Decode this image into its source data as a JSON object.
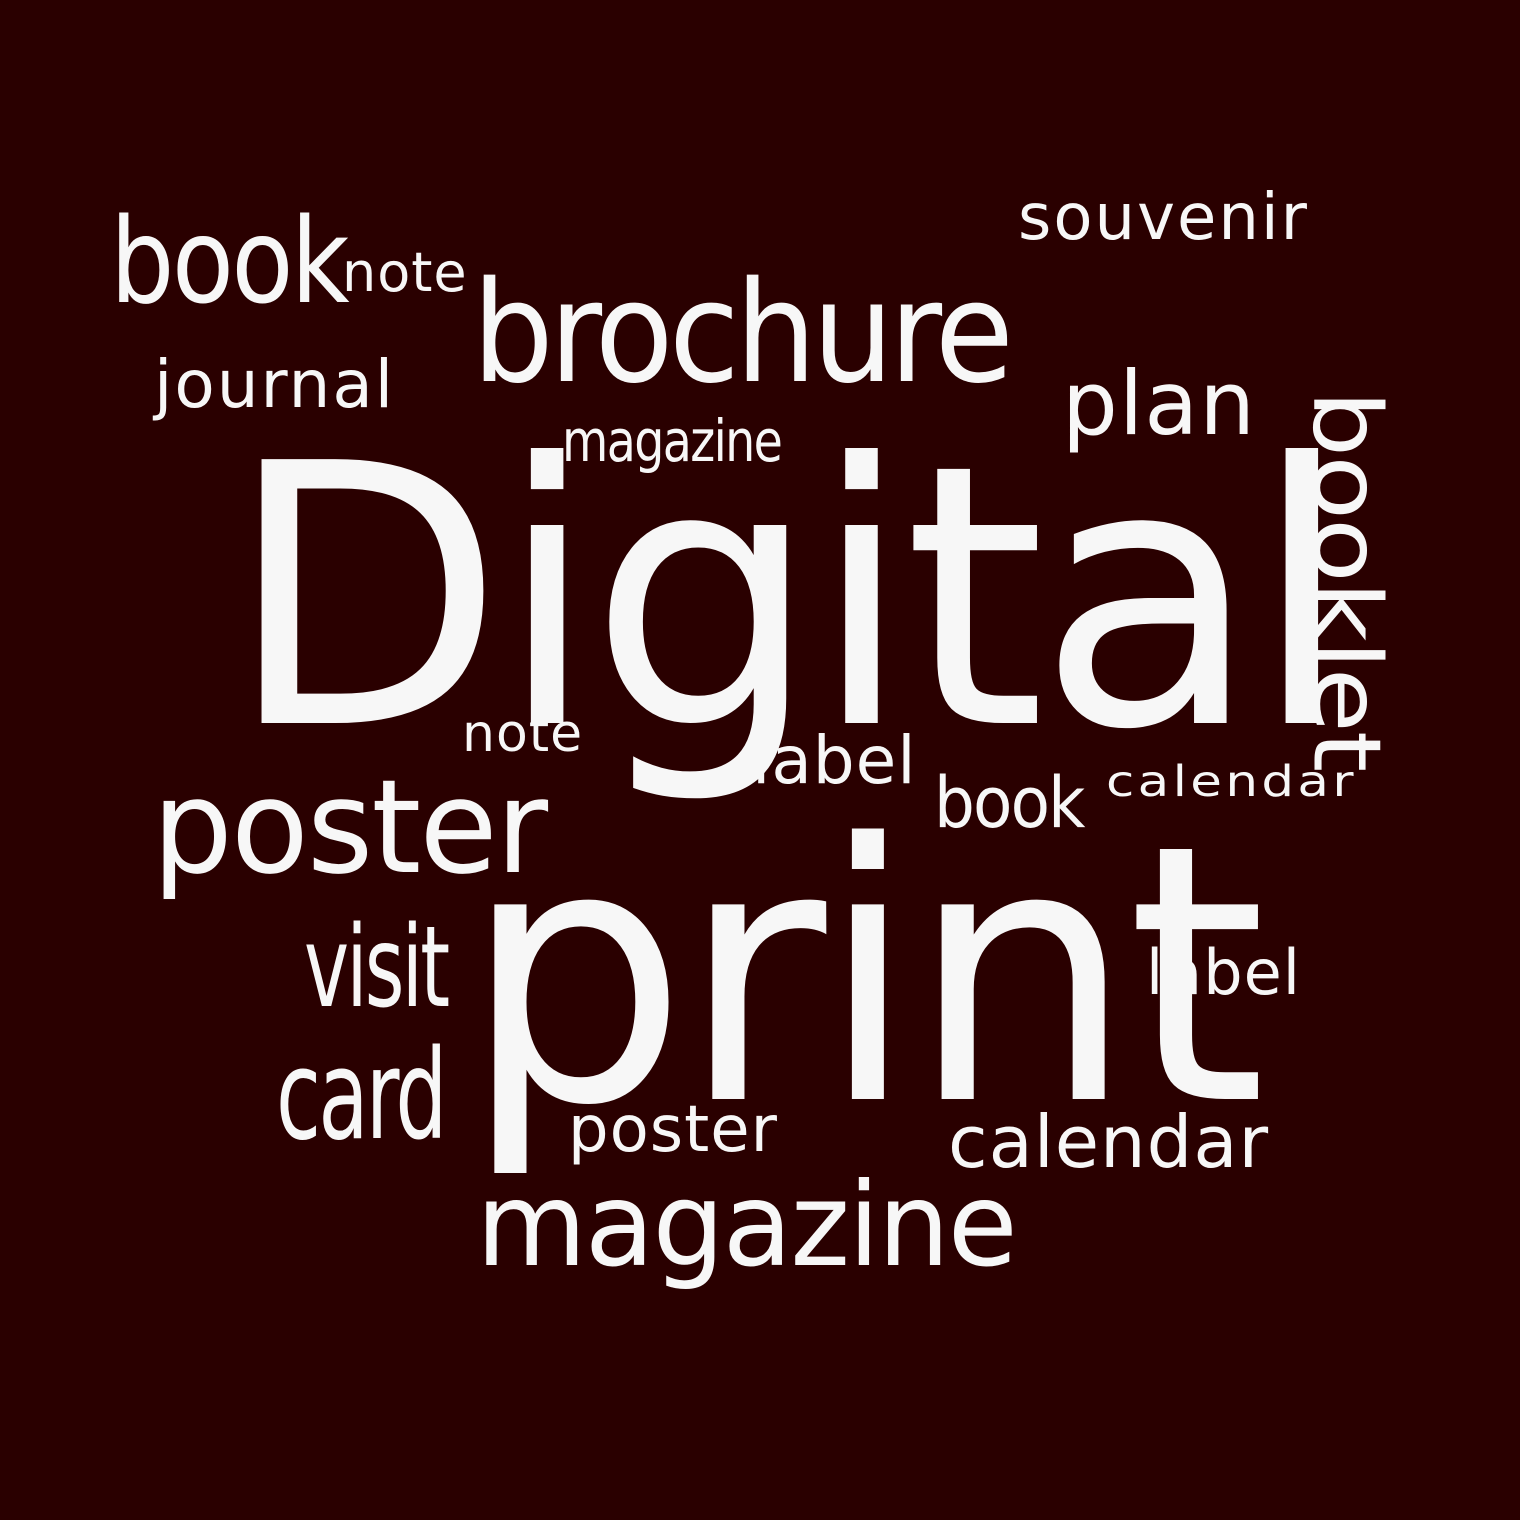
{
  "cloud": {
    "background_color": "#2a0000",
    "text_color": "#f7f7f7",
    "words": {
      "digital": "Digital",
      "print": "print",
      "brochure": "brochure",
      "poster_large": "poster",
      "magazine_large": "magazine",
      "book_top": "book",
      "booklet": "booklet",
      "plan": "plan",
      "souvenir": "souvenir",
      "journal": "journal",
      "note_top": "note",
      "magazine_small": "magazine",
      "note_mid": "note",
      "label_mid": "label",
      "book_mid": "book",
      "calendar_mid": "calendar",
      "visit": "visit",
      "card": "card",
      "label_right": "label",
      "poster_small": "poster",
      "calendar_bottom": "calendar"
    }
  }
}
